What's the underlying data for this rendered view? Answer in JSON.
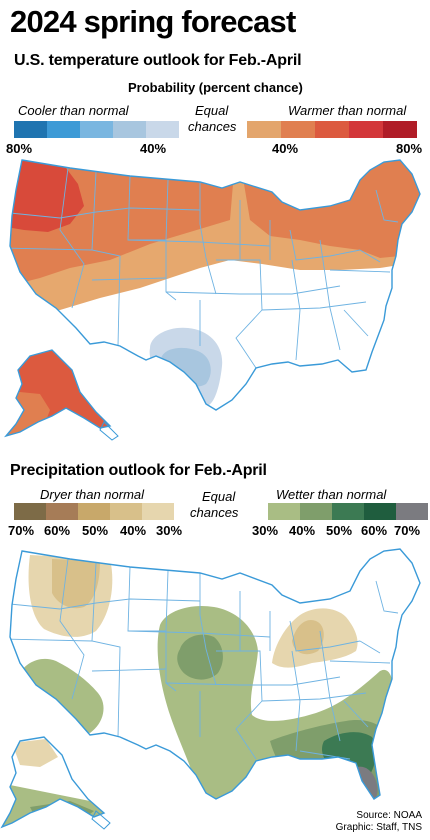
{
  "title": "2024 spring forecast",
  "temperature": {
    "subtitle": "U.S. temperature outlook for Feb.-April",
    "legend_title": "Probability (percent chance)",
    "cooler_label": "Cooler than normal",
    "equal_label_1": "Equal",
    "equal_label_2": "chances",
    "warmer_label": "Warmer than normal",
    "cool_colors": [
      "#1f74b0",
      "#3d9ad6",
      "#7ab6e0",
      "#a8c6df",
      "#c9d8e9"
    ],
    "warm_colors": [
      "#e3a56c",
      "#e07f50",
      "#dc5a3f",
      "#d3373a",
      "#b01c27"
    ],
    "ticks_cool": [
      "80%",
      "40%"
    ],
    "ticks_warm": [
      "40%",
      "80%"
    ]
  },
  "precipitation": {
    "subtitle": "Precipitation outlook for Feb.-April",
    "dryer_label": "Dryer than normal",
    "equal_label_1": "Equal",
    "equal_label_2": "chances",
    "wetter_label": "Wetter than normal",
    "dry_colors": [
      "#7d6b47",
      "#a67c57",
      "#c8a86a",
      "#d8c08a",
      "#e6d6ae"
    ],
    "wet_colors": [
      "#a9bd84",
      "#7f9e6b",
      "#3c7a53",
      "#1f5d3e",
      "#7b7b80"
    ],
    "ticks_dry": [
      "70%",
      "60%",
      "50%",
      "40%",
      "30%"
    ],
    "ticks_wet": [
      "30%",
      "40%",
      "50%",
      "60%",
      "70%"
    ]
  },
  "map_colors": {
    "state_line": "#6fb3e2",
    "country_outline": "#3a9ad8"
  },
  "source": {
    "line1": "Source: NOAA",
    "line2": "Graphic: Staff, TNS"
  }
}
